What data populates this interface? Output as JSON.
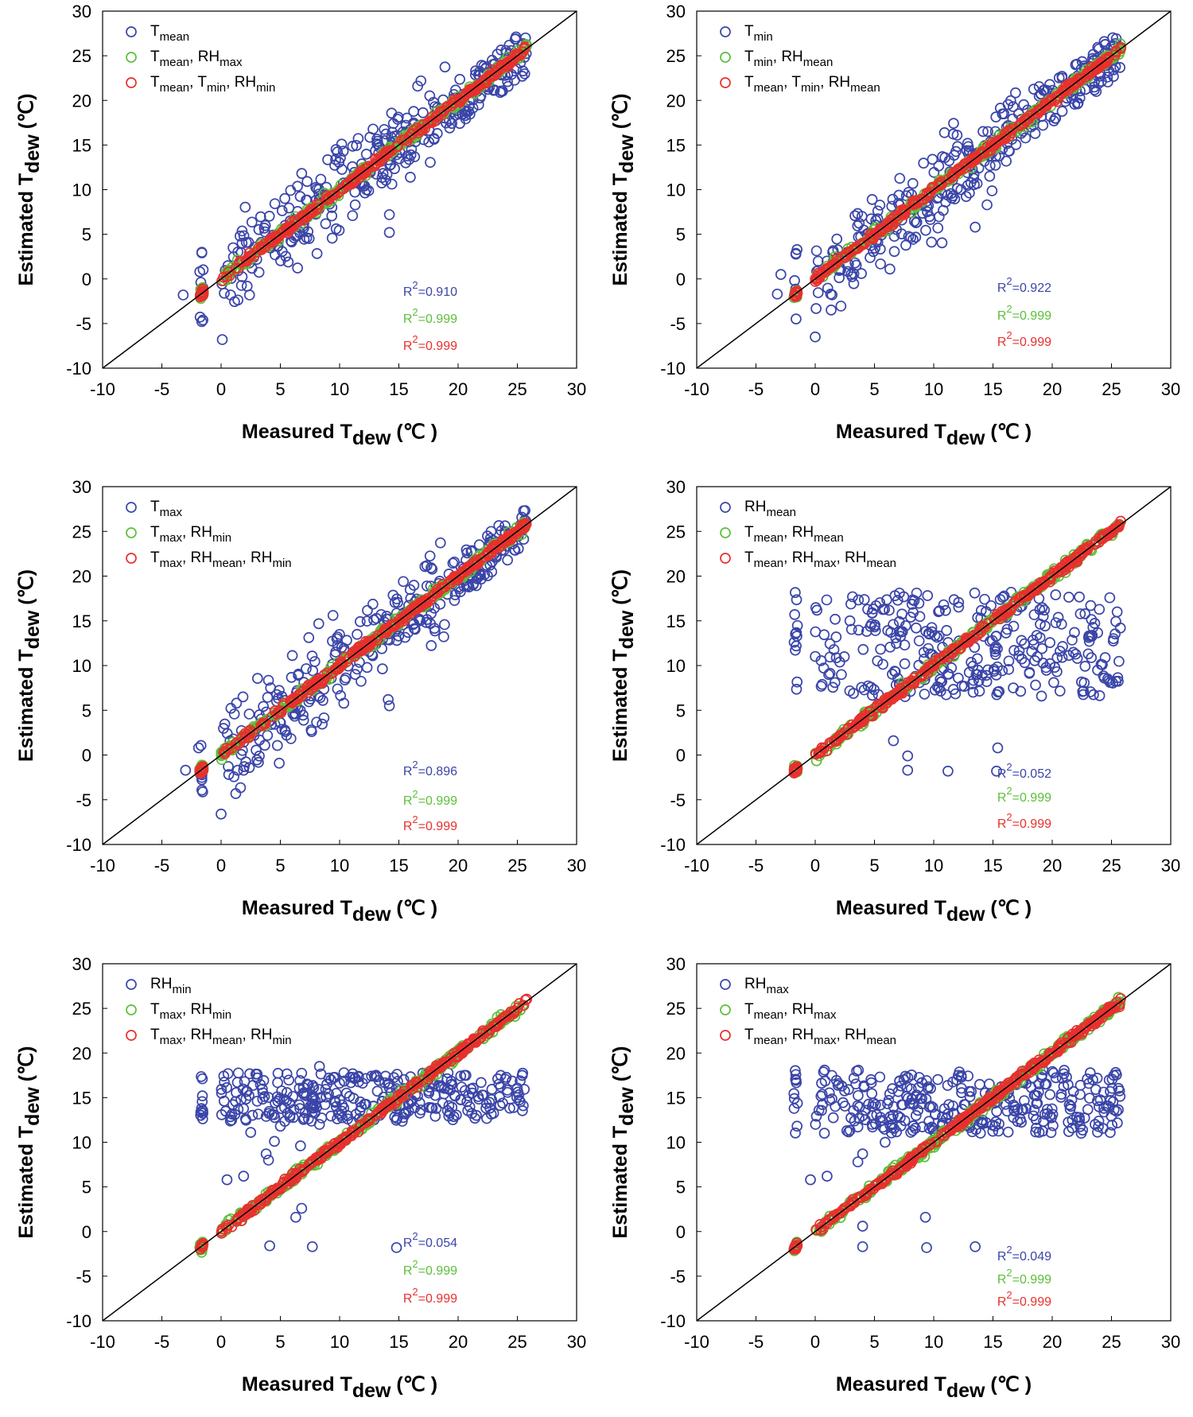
{
  "figure": {
    "x_axis_label": {
      "main": "Measured T",
      "sub": "dew",
      "unit": " (℃ )"
    },
    "y_axis_label": {
      "main": "Estimated T",
      "sub": "dew",
      "unit": " (℃)"
    },
    "colors": {
      "blue": "#3a45a8",
      "green": "#5cbf3a",
      "red": "#e8302e",
      "line": "#000000"
    }
  },
  "chart_data": [
    {
      "type": "scatter",
      "id": "p1",
      "xlim": [
        -10,
        30
      ],
      "ylim": [
        -10,
        30
      ],
      "xticks": [
        "-10",
        "-5",
        "0",
        "5",
        "10",
        "15",
        "20",
        "25",
        "30"
      ],
      "yticks": [
        "-10",
        "-5",
        "0",
        "5",
        "10",
        "15",
        "20",
        "25",
        "30"
      ],
      "reference_line": "1:1",
      "series": [
        {
          "name": "T_mean",
          "label_main": "T",
          "label_sub": "mean",
          "color": "blue",
          "r2_label": "R",
          "r2_sup": "2",
          "r2_value": "=0.910",
          "fit_r2": 0.91,
          "spread": 2.6,
          "seed": 11
        },
        {
          "name": "T_mean, RH_max",
          "label_main": "T",
          "label_sub": "mean",
          "label_rest": ", RH",
          "label_sub2": "max",
          "color": "green",
          "r2_label": "R",
          "r2_sup": "2",
          "r2_value": "=0.999",
          "fit_r2": 0.999,
          "spread": 0.3,
          "seed": 21
        },
        {
          "name": "T_mean, T_min, RH_min",
          "label_main": "T",
          "label_sub": "mean",
          "label_rest": ", T",
          "label_sub2": "min",
          "label_rest2": ", RH",
          "label_sub3": "min",
          "color": "red",
          "r2_label": "R",
          "r2_sup": "2",
          "r2_value": "=0.999",
          "fit_r2": 0.999,
          "spread": 0.2,
          "seed": 31
        }
      ],
      "outliers": [
        [
          -6.8,
          0.1
        ],
        [
          -1.8,
          2.4
        ],
        [
          -1.8,
          0.8
        ],
        [
          -1.8,
          -3.2
        ],
        [
          0.8,
          -1.8
        ],
        [
          5.2,
          14.2
        ],
        [
          7.2,
          14.2
        ],
        [
          4.8,
          1.6
        ]
      ]
    },
    {
      "type": "scatter",
      "id": "p2",
      "xlim": [
        -10,
        30
      ],
      "ylim": [
        -10,
        30
      ],
      "xticks": [
        "-10",
        "-5",
        "0",
        "5",
        "10",
        "15",
        "20",
        "25",
        "30"
      ],
      "yticks": [
        "-10",
        "-5",
        "0",
        "5",
        "10",
        "15",
        "20",
        "25",
        "30"
      ],
      "reference_line": "1:1",
      "series": [
        {
          "name": "T_min",
          "label_main": "T",
          "label_sub": "min",
          "color": "blue",
          "r2_label": "R",
          "r2_sup": "2",
          "r2_value": "=0.922",
          "fit_r2": 0.922,
          "spread": 2.4,
          "seed": 12
        },
        {
          "name": "T_min, RH_mean",
          "label_main": "T",
          "label_sub": "min",
          "label_rest": ", RH",
          "label_sub2": "mean",
          "color": "green",
          "r2_label": "R",
          "r2_sup": "2",
          "r2_value": "=0.999",
          "fit_r2": 0.999,
          "spread": 0.3,
          "seed": 22
        },
        {
          "name": "T_mean, T_min, RH_mean",
          "label_main": "T",
          "label_sub": "mean",
          "label_rest": ", T",
          "label_sub2": "min",
          "label_rest2": ", RH",
          "label_sub3": "mean",
          "color": "red",
          "r2_label": "R",
          "r2_sup": "2",
          "r2_value": "=0.999",
          "fit_r2": 0.999,
          "spread": 0.2,
          "seed": 32
        }
      ],
      "outliers": [
        [
          -6.5,
          0.0
        ],
        [
          -1.7,
          1.3
        ],
        [
          -1.7,
          -3.2
        ],
        [
          0.5,
          -2.9
        ],
        [
          0.6,
          3.9
        ],
        [
          5.8,
          13.5
        ],
        [
          8.3,
          14.5
        ]
      ]
    },
    {
      "type": "scatter",
      "id": "p3",
      "xlim": [
        -10,
        30
      ],
      "ylim": [
        -10,
        30
      ],
      "xticks": [
        "-10",
        "-5",
        "0",
        "5",
        "10",
        "15",
        "20",
        "25",
        "30"
      ],
      "yticks": [
        "-10",
        "-5",
        "0",
        "5",
        "10",
        "15",
        "20",
        "25",
        "30"
      ],
      "reference_line": "1:1",
      "series": [
        {
          "name": "T_max",
          "label_main": "T",
          "label_sub": "max",
          "color": "blue",
          "r2_label": "R",
          "r2_sup": "2",
          "r2_value": "=0.896",
          "fit_r2": 0.896,
          "spread": 2.7,
          "seed": 13
        },
        {
          "name": "T_max, RH_min",
          "label_main": "T",
          "label_sub": "max",
          "label_rest": ", RH",
          "label_sub2": "min",
          "color": "green",
          "r2_label": "R",
          "r2_sup": "2",
          "r2_value": "=0.999",
          "fit_r2": 0.999,
          "spread": 0.3,
          "seed": 23
        },
        {
          "name": "T_max, RH_mean, RH_min",
          "label_main": "T",
          "label_sub": "max",
          "label_rest": ", RH",
          "label_sub2": "mean",
          "label_rest2": ", RH",
          "label_sub3": "min",
          "color": "red",
          "r2_label": "R",
          "r2_sup": "2",
          "r2_value": "=0.999",
          "fit_r2": 0.999,
          "spread": 0.2,
          "seed": 33
        }
      ],
      "outliers": [
        [
          -6.6,
          0.0
        ],
        [
          -1.7,
          1.9
        ],
        [
          -1.7,
          1.4
        ],
        [
          -1.7,
          -3.0
        ],
        [
          0.8,
          -1.9
        ],
        [
          5.5,
          14.2
        ],
        [
          6.2,
          14.1
        ],
        [
          5.8,
          1.3
        ]
      ]
    },
    {
      "type": "scatter",
      "id": "p4",
      "xlim": [
        -10,
        30
      ],
      "ylim": [
        -10,
        30
      ],
      "xticks": [
        "-10",
        "-5",
        "0",
        "5",
        "10",
        "15",
        "20",
        "25",
        "30"
      ],
      "yticks": [
        "-10",
        "-5",
        "0",
        "5",
        "10",
        "15",
        "20",
        "25",
        "30"
      ],
      "reference_line": "1:1",
      "series": [
        {
          "name": "RH_mean",
          "label_main": "RH",
          "label_sub": "mean",
          "color": "blue",
          "r2_label": "R",
          "r2_sup": "2",
          "r2_value": "=0.052",
          "fit_r2": 0.052,
          "spread": 0,
          "band": [
            6.5,
            18.2
          ],
          "seed": 14
        },
        {
          "name": "T_mean, RH_mean",
          "label_main": "T",
          "label_sub": "mean",
          "label_rest": ", RH",
          "label_sub2": "mean",
          "color": "green",
          "r2_label": "R",
          "r2_sup": "2",
          "r2_value": "=0.999",
          "fit_r2": 0.999,
          "spread": 0.3,
          "seed": 24
        },
        {
          "name": "T_mean, RH_max, RH_mean",
          "label_main": "T",
          "label_sub": "mean",
          "label_rest": ", RH",
          "label_sub2": "max",
          "label_rest2": ", RH",
          "label_sub3": "mean",
          "color": "red",
          "r2_label": "R",
          "r2_sup": "2",
          "r2_value": "=0.999",
          "fit_r2": 0.999,
          "spread": 0.2,
          "seed": 34
        }
      ],
      "outliers": [
        [
          -1.8,
          15.3
        ],
        [
          -1.8,
          11.2
        ],
        [
          -1.7,
          7.8
        ],
        [
          -0.1,
          7.8
        ],
        [
          1.6,
          6.6
        ],
        [
          0.8,
          15.4
        ]
      ]
    },
    {
      "type": "scatter",
      "id": "p5",
      "xlim": [
        -10,
        30
      ],
      "ylim": [
        -10,
        30
      ],
      "xticks": [
        "-10",
        "-5",
        "0",
        "5",
        "10",
        "15",
        "20",
        "25",
        "30"
      ],
      "yticks": [
        "-10",
        "-5",
        "0",
        "5",
        "10",
        "15",
        "20",
        "25",
        "30"
      ],
      "reference_line": "1:1",
      "series": [
        {
          "name": "RH_min",
          "label_main": "RH",
          "label_sub": "min",
          "color": "blue",
          "r2_label": "R",
          "r2_sup": "2",
          "r2_value": "=0.054",
          "fit_r2": 0.054,
          "spread": 0,
          "band": [
            12.3,
            17.8
          ],
          "seed": 15
        },
        {
          "name": "T_max, RH_min",
          "label_main": "T",
          "label_sub": "max",
          "label_rest": ", RH",
          "label_sub2": "min",
          "color": "green",
          "r2_label": "R",
          "r2_sup": "2",
          "r2_value": "=0.999",
          "fit_r2": 0.999,
          "spread": 0.3,
          "seed": 25
        },
        {
          "name": "T_max, RH_mean, RH_min",
          "label_main": "T",
          "label_sub": "max",
          "label_rest": ", RH",
          "label_sub2": "mean",
          "label_rest2": ", RH",
          "label_sub3": "min",
          "color": "red",
          "r2_label": "R",
          "r2_sup": "2",
          "r2_value": "=0.999",
          "fit_r2": 0.999,
          "spread": 0.2,
          "seed": 35
        }
      ],
      "outliers": [
        [
          -1.8,
          14.8
        ],
        [
          -1.7,
          7.7
        ],
        [
          -1.6,
          4.1
        ],
        [
          1.6,
          6.3
        ],
        [
          2.6,
          6.8
        ],
        [
          5.8,
          0.5
        ],
        [
          6.2,
          1.9
        ],
        [
          8.0,
          4.0
        ],
        [
          8.7,
          3.8
        ],
        [
          9.6,
          6.7
        ],
        [
          10.1,
          4.5
        ],
        [
          11.1,
          2.5
        ],
        [
          11.8,
          5.0
        ],
        [
          12.0,
          8.3
        ],
        [
          12.8,
          5.8
        ],
        [
          12.9,
          3.8
        ],
        [
          14.2,
          6.6
        ],
        [
          14.3,
          7.7
        ],
        [
          18.5,
          8.3
        ]
      ]
    },
    {
      "type": "scatter",
      "id": "p6",
      "xlim": [
        -10,
        30
      ],
      "ylim": [
        -10,
        30
      ],
      "xticks": [
        "-10",
        "-5",
        "0",
        "5",
        "10",
        "15",
        "20",
        "25",
        "30"
      ],
      "yticks": [
        "-10",
        "-5",
        "0",
        "5",
        "10",
        "15",
        "20",
        "25",
        "30"
      ],
      "reference_line": "1:1",
      "series": [
        {
          "name": "RH_max",
          "label_main": "RH",
          "label_sub": "max",
          "color": "blue",
          "r2_label": "R",
          "r2_sup": "2",
          "r2_value": "=0.049",
          "fit_r2": 0.049,
          "spread": 0,
          "band": [
            11.0,
            18.2
          ],
          "seed": 16
        },
        {
          "name": "T_mean, RH_max",
          "label_main": "T",
          "label_sub": "mean",
          "label_rest": ", RH",
          "label_sub2": "max",
          "color": "green",
          "r2_label": "R",
          "r2_sup": "2",
          "r2_value": "=0.999",
          "fit_r2": 0.999,
          "spread": 0.3,
          "seed": 26
        },
        {
          "name": "T_mean, RH_max, RH_mean",
          "label_main": "T",
          "label_sub": "mean",
          "label_rest": ", RH",
          "label_sub2": "max",
          "label_rest2": ", RH",
          "label_sub3": "mean",
          "color": "red",
          "r2_label": "R",
          "r2_sup": "2",
          "r2_value": "=0.999",
          "fit_r2": 0.999,
          "spread": 0.2,
          "seed": 36
        }
      ],
      "outliers": [
        [
          -1.7,
          13.5
        ],
        [
          -1.8,
          9.4
        ],
        [
          -1.7,
          4.0
        ],
        [
          0.6,
          4.0
        ],
        [
          1.6,
          9.3
        ],
        [
          5.8,
          -0.4
        ],
        [
          6.2,
          1.0
        ],
        [
          7.8,
          3.6
        ],
        [
          8.7,
          4.0
        ],
        [
          10.0,
          5.9
        ],
        [
          12.0,
          4.8
        ],
        [
          12.4,
          5.5
        ],
        [
          12.8,
          5.5
        ],
        [
          13.0,
          4.8
        ],
        [
          14.3,
          8.3
        ],
        [
          14.3,
          9.0
        ]
      ]
    }
  ]
}
